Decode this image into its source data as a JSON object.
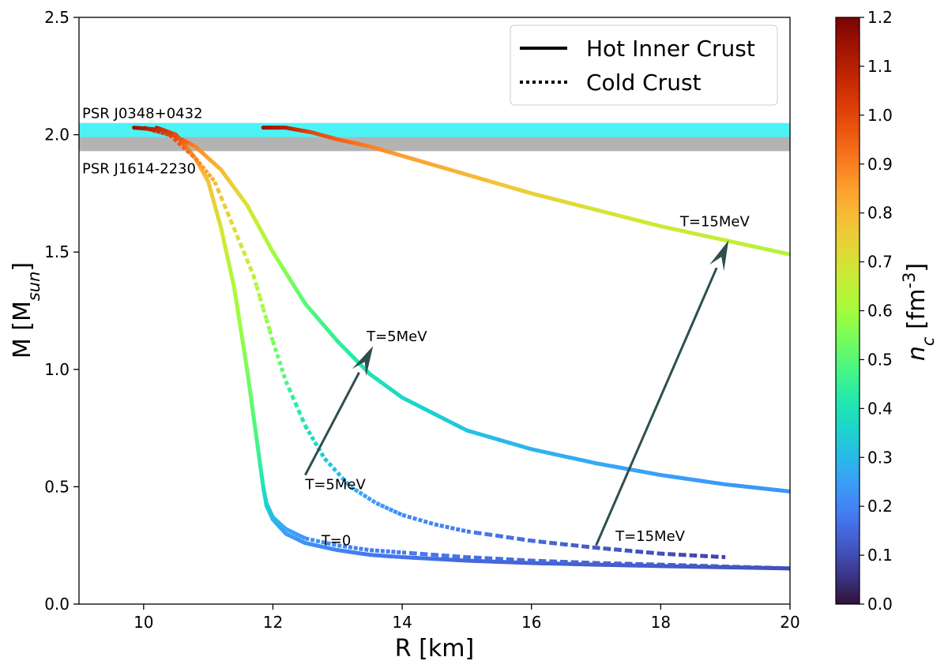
{
  "chart_data": {
    "type": "line",
    "xlabel": "R [km]",
    "ylabel": "M [M_sun]",
    "xlim": [
      9,
      20
    ],
    "ylim": [
      0,
      2.5
    ],
    "xticks": [
      10,
      12,
      14,
      16,
      18,
      20
    ],
    "yticks": [
      0.0,
      0.5,
      1.0,
      1.5,
      2.0,
      2.5
    ],
    "xtick_labels": [
      "10",
      "12",
      "14",
      "16",
      "18",
      "20"
    ],
    "ytick_labels": [
      "0.0",
      "0.5",
      "1.0",
      "1.5",
      "2.0",
      "2.5"
    ],
    "grid": false,
    "legend": {
      "position": "top-right",
      "entries": [
        {
          "label": "Hot Inner Crust",
          "style": "solid"
        },
        {
          "label": "Cold Crust",
          "style": "dotted"
        }
      ]
    },
    "bands": [
      {
        "label": "PSR J0348+0432",
        "ymin": 1.97,
        "ymax": 2.05,
        "color": "#4df2f5"
      },
      {
        "label": "PSR J1614-2230",
        "ymin": 1.93,
        "ymax": 1.99,
        "color": "#b3b3b3"
      }
    ],
    "colorbar": {
      "label": "n_c [fm^-3]",
      "min": 0.0,
      "max": 1.2,
      "ticks": [
        "0.0",
        "0.1",
        "0.2",
        "0.3",
        "0.4",
        "0.5",
        "0.6",
        "0.7",
        "0.8",
        "0.9",
        "1.0",
        "1.1",
        "1.2"
      ],
      "colormap": "turbo"
    },
    "series": [
      {
        "style": "solid",
        "x": [
          10.2,
          10.5,
          10.8,
          11.0,
          11.2,
          11.4,
          11.6,
          11.7,
          11.8,
          11.85,
          11.9,
          12.0,
          12.2,
          12.5,
          13.0,
          13.5,
          14.0,
          15.0,
          16.0,
          17.0,
          18.0,
          19.0,
          20.0
        ],
        "y": [
          2.03,
          2.0,
          1.9,
          1.8,
          1.6,
          1.35,
          1.0,
          0.8,
          0.6,
          0.5,
          0.42,
          0.36,
          0.3,
          0.26,
          0.23,
          0.21,
          0.2,
          0.185,
          0.175,
          0.168,
          0.162,
          0.157,
          0.152
        ],
        "nc": [
          1.1,
          1.0,
          0.85,
          0.78,
          0.7,
          0.62,
          0.55,
          0.5,
          0.45,
          0.4,
          0.35,
          0.3,
          0.25,
          0.22,
          0.2,
          0.18,
          0.17,
          0.15,
          0.14,
          0.13,
          0.12,
          0.11,
          0.1
        ]
      },
      {
        "style": "dotted",
        "x": [
          11.85,
          11.9,
          12.0,
          12.2,
          12.5,
          13.0,
          13.5,
          14.0,
          15.0,
          16.0,
          17.0,
          18.0,
          19.0,
          20.0
        ],
        "y": [
          0.5,
          0.43,
          0.37,
          0.32,
          0.28,
          0.25,
          0.23,
          0.22,
          0.2,
          0.185,
          0.175,
          0.168,
          0.16,
          0.152
        ],
        "nc": [
          0.4,
          0.35,
          0.3,
          0.26,
          0.23,
          0.21,
          0.19,
          0.18,
          0.16,
          0.15,
          0.14,
          0.13,
          0.12,
          0.11
        ]
      },
      {
        "style": "dotted",
        "x": [
          10.0,
          10.4,
          10.8,
          11.1,
          11.4,
          11.7,
          12.0,
          12.2,
          12.5,
          12.8,
          13.2,
          13.6,
          14.0,
          14.5,
          15.0,
          16.0,
          17.0,
          18.0,
          19.0
        ],
        "y": [
          2.03,
          2.0,
          1.9,
          1.8,
          1.6,
          1.4,
          1.12,
          0.95,
          0.76,
          0.62,
          0.5,
          0.43,
          0.38,
          0.34,
          0.31,
          0.27,
          0.24,
          0.215,
          0.2
        ],
        "nc": [
          1.1,
          1.0,
          0.9,
          0.8,
          0.72,
          0.65,
          0.55,
          0.48,
          0.4,
          0.33,
          0.28,
          0.24,
          0.22,
          0.2,
          0.18,
          0.15,
          0.12,
          0.1,
          0.08
        ]
      },
      {
        "style": "solid",
        "x": [
          9.85,
          10.3,
          10.8,
          11.2,
          11.6,
          12.0,
          12.5,
          13.0,
          13.5,
          14.0,
          15.0,
          16.0,
          17.0,
          18.0,
          19.0,
          20.0
        ],
        "y": [
          2.03,
          2.02,
          1.95,
          1.85,
          1.7,
          1.5,
          1.28,
          1.12,
          0.98,
          0.88,
          0.74,
          0.66,
          0.6,
          0.55,
          0.51,
          0.48
        ],
        "nc": [
          1.15,
          1.05,
          0.9,
          0.8,
          0.7,
          0.6,
          0.5,
          0.45,
          0.4,
          0.37,
          0.32,
          0.29,
          0.27,
          0.25,
          0.24,
          0.23
        ]
      },
      {
        "style": "solid",
        "x": [
          11.85,
          12.2,
          12.6,
          13.0,
          13.5,
          14.0,
          15.0,
          16.0,
          17.0,
          18.0,
          19.0,
          20.0
        ],
        "y": [
          2.03,
          2.03,
          2.01,
          1.98,
          1.95,
          1.91,
          1.83,
          1.75,
          1.68,
          1.61,
          1.55,
          1.49
        ],
        "nc": [
          1.15,
          1.1,
          1.0,
          0.95,
          0.9,
          0.85,
          0.8,
          0.75,
          0.7,
          0.68,
          0.66,
          0.63
        ]
      }
    ],
    "annotations": [
      {
        "text": "T=15MeV",
        "x": 18.3,
        "y": 1.61
      },
      {
        "text": "T=5MeV",
        "x": 13.45,
        "y": 1.12
      },
      {
        "text": "T=5MeV",
        "x": 12.5,
        "y": 0.49
      },
      {
        "text": "T=15MeV",
        "x": 17.3,
        "y": 0.27
      },
      {
        "text": "T=0",
        "x": 12.75,
        "y": 0.25
      }
    ],
    "arrows": [
      {
        "from": [
          12.5,
          0.55
        ],
        "to": [
          13.55,
          1.1
        ]
      },
      {
        "from": [
          17.0,
          0.25
        ],
        "to": [
          19.05,
          1.55
        ]
      }
    ]
  }
}
